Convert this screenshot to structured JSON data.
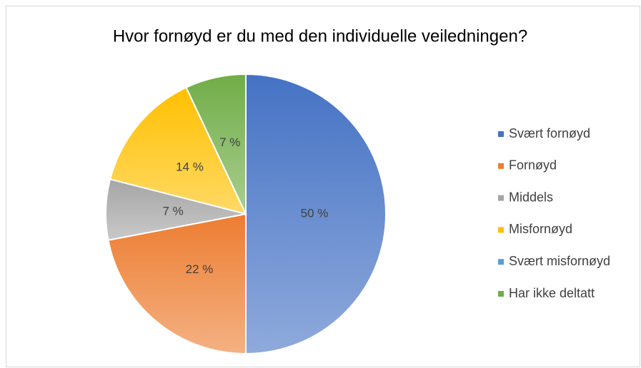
{
  "chart_data": {
    "type": "pie",
    "title": "Hvor fornøyd er du med den individuelle veiledningen?",
    "categories": [
      "Svært fornøyd",
      "Fornøyd",
      "Middels",
      "Misfornøyd",
      "Svært misfornøyd",
      "Har ikke deltatt"
    ],
    "values": [
      50,
      22,
      7,
      14,
      0,
      7
    ],
    "value_labels": [
      "50 %",
      "22 %",
      "7 %",
      "14 %",
      null,
      "7 %"
    ],
    "colors": [
      "#4472c4",
      "#ed7d31",
      "#a5a5a5",
      "#ffc000",
      "#5b9bd5",
      "#70ad47"
    ],
    "legend": "right"
  }
}
